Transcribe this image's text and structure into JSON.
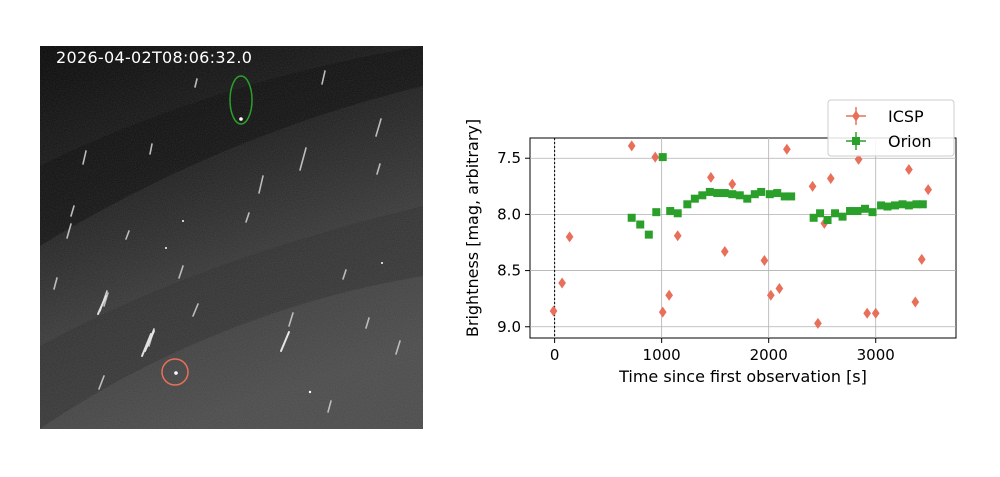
{
  "image": {
    "timestamp": "2026-04-02T08:06:32.0",
    "markers": [
      {
        "name": "ICSP",
        "color": "#e8705a"
      },
      {
        "name": "Orion",
        "color": "#2aa02a"
      }
    ]
  },
  "chart_data": {
    "type": "scatter",
    "title": "",
    "xlabel": "Time since first observation [s]",
    "ylabel": "Brightness [mag, arbitrary]",
    "xlim": [
      -230,
      3750
    ],
    "ylim": [
      9.1,
      7.32
    ],
    "y_inverted": true,
    "grid": true,
    "xticks": [
      0,
      1000,
      2000,
      3000
    ],
    "xtick_labels": [
      "0",
      "1000",
      "2000",
      "3000"
    ],
    "yticks": [
      7.5,
      8.0,
      8.5,
      9.0
    ],
    "ytick_labels": [
      "7.5",
      "8.0",
      "8.5",
      "9.0"
    ],
    "vline_x": 0,
    "legend": {
      "position": "top-right",
      "entries": [
        "ICSP",
        "Orion"
      ]
    },
    "series": [
      {
        "name": "ICSP",
        "marker": "diamond",
        "color": "#e8705a",
        "x": [
          -10,
          70,
          140,
          720,
          940,
          1010,
          1070,
          1150,
          1460,
          1590,
          1660,
          1960,
          2020,
          2100,
          2170,
          2410,
          2460,
          2520,
          2580,
          2840,
          2920,
          3000,
          3310,
          3370,
          3430,
          3490
        ],
        "y": [
          8.86,
          8.61,
          8.2,
          7.39,
          7.49,
          8.87,
          8.72,
          8.19,
          7.67,
          8.33,
          7.73,
          8.41,
          8.72,
          8.66,
          7.42,
          7.75,
          8.97,
          8.08,
          7.68,
          7.51,
          8.88,
          8.88,
          7.6,
          8.78,
          8.4,
          7.78
        ]
      },
      {
        "name": "Orion",
        "marker": "square",
        "color": "#2aa02a",
        "x": [
          720,
          800,
          880,
          950,
          1010,
          1080,
          1150,
          1240,
          1310,
          1380,
          1450,
          1520,
          1590,
          1660,
          1730,
          1800,
          1870,
          1930,
          2010,
          2080,
          2150,
          2210,
          2420,
          2480,
          2550,
          2620,
          2690,
          2760,
          2830,
          2900,
          2970,
          3050,
          3110,
          3180,
          3250,
          3310,
          3380,
          3440
        ],
        "y": [
          8.03,
          8.09,
          8.18,
          7.98,
          7.49,
          7.97,
          7.99,
          7.91,
          7.86,
          7.83,
          7.8,
          7.81,
          7.81,
          7.82,
          7.83,
          7.86,
          7.82,
          7.8,
          7.82,
          7.81,
          7.84,
          7.84,
          8.03,
          7.99,
          8.05,
          7.99,
          8.02,
          7.97,
          7.97,
          7.95,
          7.98,
          7.92,
          7.93,
          7.92,
          7.91,
          7.92,
          7.91,
          7.91
        ]
      }
    ]
  }
}
